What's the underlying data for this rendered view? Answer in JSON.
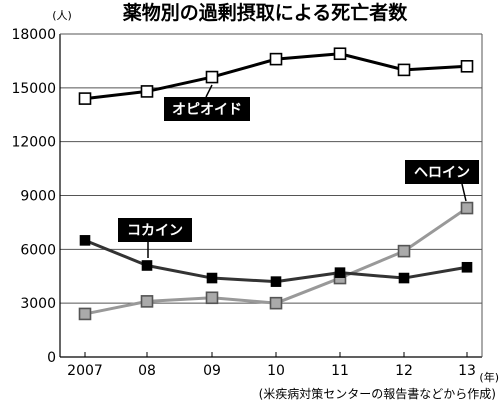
{
  "chart_data": {
    "type": "line",
    "title": "薬物別の過剰摂取による死亡者数",
    "y_unit": "(人)",
    "x_unit": "(年)",
    "source": "(米疾病対策センターの報告書などから作成)",
    "x": [
      "2007",
      "08",
      "09",
      "10",
      "11",
      "12",
      "13"
    ],
    "ylim": [
      0,
      18000
    ],
    "yticks": [
      "0",
      "3000",
      "6000",
      "9000",
      "12000",
      "15000",
      "18000"
    ],
    "grid": "horizontal",
    "series": [
      {
        "name": "オピオイド",
        "values": [
          14400,
          14800,
          15600,
          16600,
          16900,
          16000,
          16200
        ],
        "color": "#000000",
        "marker_fill": "#ffffff"
      },
      {
        "name": "コカイン",
        "values": [
          6500,
          5100,
          4400,
          4200,
          4700,
          4400,
          5000
        ],
        "color": "#333333",
        "marker_fill": "#000000"
      },
      {
        "name": "ヘロイン",
        "values": [
          2400,
          3100,
          3300,
          3000,
          4400,
          5900,
          8300
        ],
        "color": "#999999",
        "marker_fill": "#aaaaaa"
      }
    ]
  }
}
